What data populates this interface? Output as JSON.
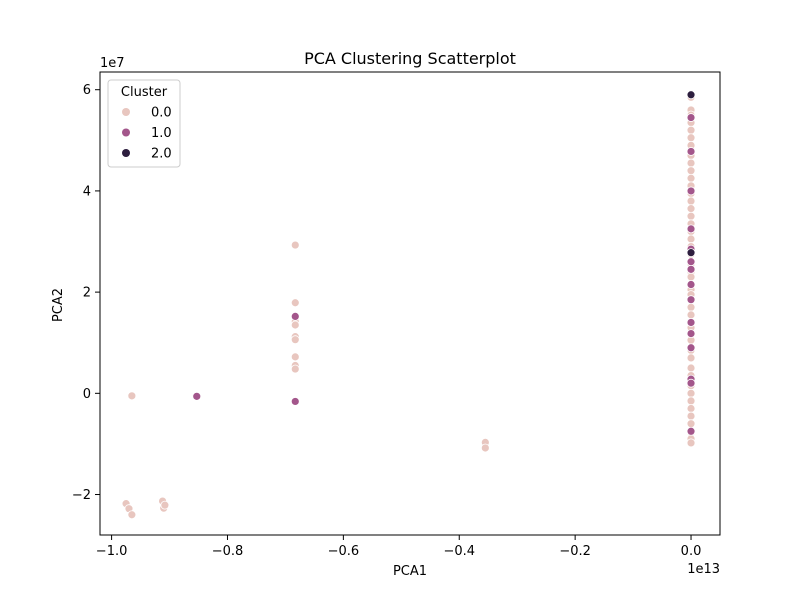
{
  "chart_data": {
    "type": "scatter",
    "title": "PCA Clustering Scatterplot",
    "xlabel": "PCA1",
    "ylabel": "PCA2",
    "x_multiplier_label": "1e13",
    "y_multiplier_label": "1e7",
    "xlim": [
      -1.02,
      0.05
    ],
    "ylim": [
      -2.8,
      6.35
    ],
    "x_ticks": [
      {
        "value": -1.0,
        "label": "−1.0"
      },
      {
        "value": -0.8,
        "label": "−0.8"
      },
      {
        "value": -0.6,
        "label": "−0.6"
      },
      {
        "value": -0.4,
        "label": "−0.4"
      },
      {
        "value": -0.2,
        "label": "−0.2"
      },
      {
        "value": 0.0,
        "label": "0.0"
      }
    ],
    "y_ticks": [
      {
        "value": -2,
        "label": "−2"
      },
      {
        "value": 0,
        "label": "0"
      },
      {
        "value": 2,
        "label": "2"
      },
      {
        "value": 4,
        "label": "4"
      },
      {
        "value": 6,
        "label": "6"
      }
    ],
    "grid": false,
    "legend": {
      "title": "Cluster",
      "placement": "top-left"
    },
    "series": [
      {
        "name": "0.0",
        "color": "#e8c6bf",
        "points": [
          [
            -0.965,
            -0.05
          ],
          [
            -0.975,
            -2.18
          ],
          [
            -0.97,
            -2.28
          ],
          [
            -0.965,
            -2.4
          ],
          [
            -0.912,
            -2.13
          ],
          [
            -0.91,
            -2.27
          ],
          [
            -0.908,
            -2.21
          ],
          [
            -0.683,
            2.93
          ],
          [
            -0.683,
            1.79
          ],
          [
            -0.683,
            1.42
          ],
          [
            -0.683,
            1.35
          ],
          [
            -0.683,
            1.12
          ],
          [
            -0.683,
            1.06
          ],
          [
            -0.683,
            0.72
          ],
          [
            -0.683,
            0.55
          ],
          [
            -0.683,
            0.48
          ],
          [
            -0.355,
            -0.97
          ],
          [
            -0.355,
            -1.08
          ],
          [
            0.0,
            5.85
          ],
          [
            0.0,
            5.6
          ],
          [
            0.0,
            5.5
          ],
          [
            0.0,
            5.35
          ],
          [
            0.0,
            5.2
          ],
          [
            0.0,
            5.05
          ],
          [
            0.0,
            4.9
          ],
          [
            0.0,
            4.7
          ],
          [
            0.0,
            4.55
          ],
          [
            0.0,
            4.4
          ],
          [
            0.0,
            4.25
          ],
          [
            0.0,
            4.1
          ],
          [
            0.0,
            3.95
          ],
          [
            0.0,
            3.8
          ],
          [
            0.0,
            3.65
          ],
          [
            0.0,
            3.5
          ],
          [
            0.0,
            3.35
          ],
          [
            0.0,
            3.2
          ],
          [
            0.0,
            3.05
          ],
          [
            0.0,
            2.9
          ],
          [
            0.0,
            2.75
          ],
          [
            0.0,
            2.55
          ],
          [
            0.0,
            2.4
          ],
          [
            0.0,
            2.3
          ],
          [
            0.0,
            2.05
          ],
          [
            0.0,
            1.95
          ],
          [
            0.0,
            1.7
          ],
          [
            0.0,
            1.55
          ],
          [
            0.0,
            1.3
          ],
          [
            0.0,
            1.05
          ],
          [
            0.0,
            0.85
          ],
          [
            0.0,
            0.7
          ],
          [
            0.0,
            0.5
          ],
          [
            0.0,
            0.35
          ],
          [
            0.0,
            0.15
          ],
          [
            0.0,
            0.0
          ],
          [
            0.0,
            -0.15
          ],
          [
            0.0,
            -0.3
          ],
          [
            0.0,
            -0.45
          ],
          [
            0.0,
            -0.6
          ],
          [
            0.0,
            -0.78
          ],
          [
            0.0,
            -0.9
          ],
          [
            0.0,
            -0.98
          ]
        ]
      },
      {
        "name": "1.0",
        "color": "#a3568b",
        "points": [
          [
            -0.853,
            -0.06
          ],
          [
            -0.683,
            1.52
          ],
          [
            -0.683,
            -0.16
          ],
          [
            0.0,
            5.45
          ],
          [
            0.0,
            4.78
          ],
          [
            0.0,
            4.0
          ],
          [
            0.0,
            3.25
          ],
          [
            0.0,
            2.85
          ],
          [
            0.0,
            2.6
          ],
          [
            0.0,
            2.45
          ],
          [
            0.0,
            2.15
          ],
          [
            0.0,
            1.85
          ],
          [
            0.0,
            1.4
          ],
          [
            0.0,
            1.18
          ],
          [
            0.0,
            0.9
          ],
          [
            0.0,
            0.28
          ],
          [
            0.0,
            0.2
          ],
          [
            0.0,
            -0.75
          ]
        ]
      },
      {
        "name": "2.0",
        "color": "#2d1e3e",
        "points": [
          [
            0.0,
            5.9
          ],
          [
            0.0,
            2.78
          ]
        ]
      }
    ]
  }
}
